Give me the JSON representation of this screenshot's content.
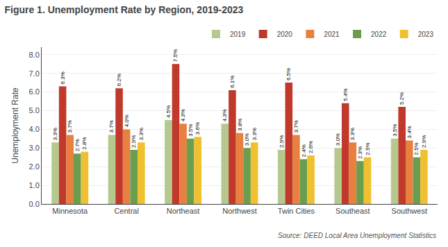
{
  "chart_data": {
    "type": "bar",
    "title": "Figure 1. Unemployment Rate by Region, 2019-2023",
    "y_label": "Unemployment Rate",
    "annotations": [
      "Source: DEED Local Area Unemployment Statistics"
    ],
    "categories": [
      "Minnesota",
      "Central",
      "Northeast",
      "Northwest",
      "Twin Cities",
      "Southeast",
      "Southwest"
    ],
    "series": [
      {
        "name": "2019",
        "color": "#b5c98e",
        "values": [
          3.3,
          3.7,
          4.5,
          4.3,
          2.9,
          3.0,
          3.5
        ],
        "value_labels": [
          "3.3%",
          "3.7%",
          "4.5%",
          "4.3%",
          "2.9%",
          "3.0%",
          "3.5%"
        ]
      },
      {
        "name": "2020",
        "color": "#c0392b",
        "values": [
          6.3,
          6.2,
          7.5,
          6.1,
          6.5,
          5.4,
          5.2
        ],
        "value_labels": [
          "6.3%",
          "6.2%",
          "7.5%",
          "6.1%",
          "6.5%",
          "5.4%",
          "5.2%"
        ]
      },
      {
        "name": "2021",
        "color": "#e88040",
        "values": [
          3.7,
          4.0,
          4.3,
          3.8,
          3.7,
          3.3,
          3.4
        ],
        "value_labels": [
          "3.7%",
          "4.0%",
          "4.3%",
          "3.8%",
          "3.7%",
          "3.3%",
          "3.4%"
        ]
      },
      {
        "name": "2022",
        "color": "#6a9e4f",
        "values": [
          2.7,
          2.9,
          3.5,
          3.0,
          2.4,
          2.3,
          2.5
        ],
        "value_labels": [
          "2.7%",
          "2.9%",
          "3.5%",
          "3.0%",
          "2.4%",
          "2.3%",
          "2.5%"
        ]
      },
      {
        "name": "2023",
        "color": "#f0c030",
        "values": [
          2.8,
          3.3,
          3.6,
          3.3,
          2.6,
          2.5,
          2.9
        ],
        "value_labels": [
          "2.8%",
          "3.3%",
          "3.6%",
          "3.3%",
          "2.6%",
          "2.5%",
          "2.9%"
        ]
      }
    ],
    "ylim": [
      0,
      8.4
    ],
    "yticks": [
      {
        "value": 0.0,
        "label": "0.0"
      },
      {
        "value": 1.0,
        "label": "1.0"
      },
      {
        "value": 2.0,
        "label": "2.0"
      },
      {
        "value": 3.0,
        "label": "3.0"
      },
      {
        "value": 4.0,
        "label": "4.0"
      },
      {
        "value": 5.0,
        "label": "5.0"
      },
      {
        "value": 6.0,
        "label": "6.0"
      },
      {
        "value": 7.0,
        "label": "7.0"
      },
      {
        "value": 8.0,
        "label": "8.0"
      }
    ],
    "grid": true,
    "legend": "upper right",
    "data_labels": true
  }
}
